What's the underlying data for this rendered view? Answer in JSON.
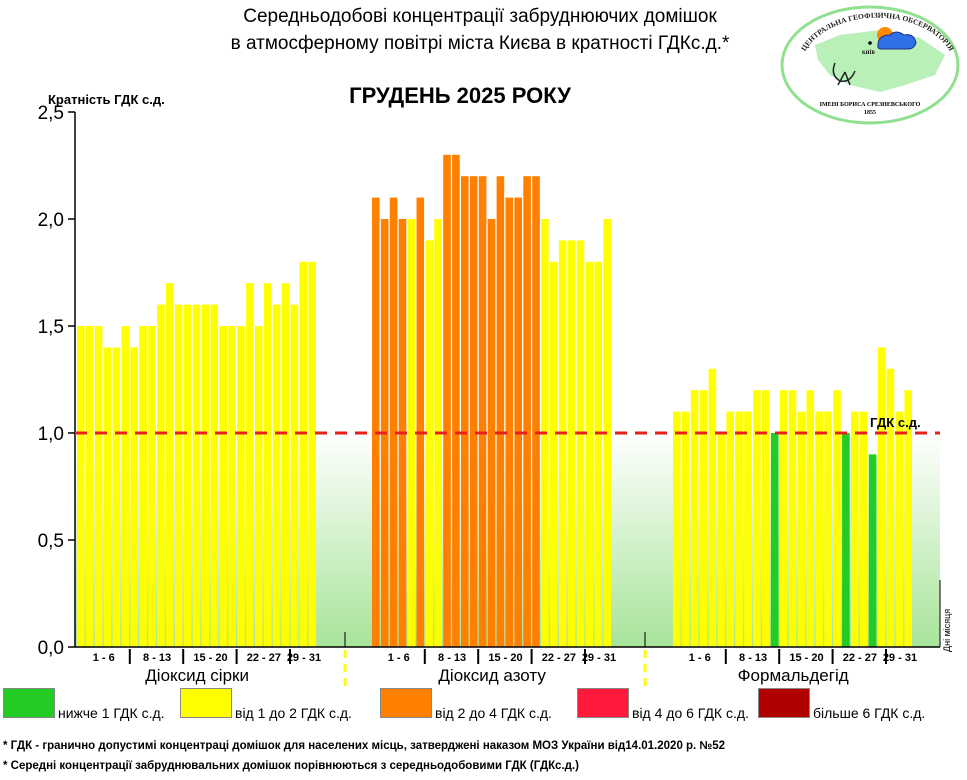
{
  "header": {
    "title_line1": "Середньодобові концентрації забруднюючих домішок",
    "title_line2": "в атмосферному повітрі міста Києва в кратності ГДКс.д.*"
  },
  "logo": {
    "top_text": "ЦЕНТРАЛЬНА ГЕОФІЗИЧНА ОБСЕРВАТОРІЯ",
    "bottom_text": "ІМЕНІ БОРИСА СРЕЗНЕВСЬКОГО",
    "year": "1855",
    "city": "КИЇВ"
  },
  "colors": {
    "g": "#22cc22",
    "y": "#ffff00",
    "o": "#ff8000",
    "r": "#ff1a3c",
    "d": "#b00000",
    "limit": "#e8201c"
  },
  "chart_data": {
    "type": "bar",
    "title": "ГРУДЕНЬ 2025 РОКУ",
    "ylabel": "Кратність ГДК с.д.",
    "xlabel": "Дні місяця",
    "ylim": [
      0,
      2.5
    ],
    "yticks": [
      "0,0",
      "0,5",
      "1,0",
      "1,5",
      "2,0",
      "2,5"
    ],
    "ytick_values": [
      0,
      0.5,
      1.0,
      1.5,
      2.0,
      2.5
    ],
    "reference_line": {
      "value": 1.0,
      "label": "ГДК с.д."
    },
    "week_labels": [
      "1 - 6",
      "8 - 13",
      "15 - 20",
      "22 - 27",
      "29 - 31"
    ],
    "week_sizes": [
      6,
      6,
      6,
      6,
      3
    ],
    "series": [
      {
        "name": "Діоксид сірки",
        "values": [
          1.5,
          1.5,
          1.5,
          1.4,
          1.4,
          1.5,
          1.4,
          1.5,
          1.5,
          1.6,
          1.7,
          1.6,
          1.6,
          1.6,
          1.6,
          1.6,
          1.5,
          1.5,
          1.5,
          1.7,
          1.5,
          1.7,
          1.6,
          1.7,
          1.6,
          1.8,
          1.8
        ],
        "levels": "yyyyyyyyyyyyyyyyyyyyyyyyyyy"
      },
      {
        "name": "Діоксид азоту",
        "values": [
          2.1,
          2.0,
          2.1,
          2.0,
          2.0,
          2.1,
          1.9,
          2.0,
          2.3,
          2.3,
          2.2,
          2.2,
          2.2,
          2.0,
          2.2,
          2.1,
          2.1,
          2.2,
          2.2,
          2.0,
          1.8,
          1.9,
          1.9,
          1.9,
          1.8,
          1.8,
          2.0
        ],
        "levels": "ooooyoyyoooooooooooyyyyyyyy"
      },
      {
        "name": "Формальдегід",
        "values": [
          1.1,
          1.1,
          1.2,
          1.2,
          1.3,
          1.0,
          1.1,
          1.1,
          1.1,
          1.2,
          1.2,
          1.0,
          1.2,
          1.2,
          1.1,
          1.2,
          1.1,
          1.1,
          1.2,
          1.0,
          1.1,
          1.1,
          0.9,
          1.4,
          1.3,
          1.1,
          1.2
        ],
        "levels": "yyyyyyyyyyygyyyyyyygyygyyyy"
      }
    ]
  },
  "legend": [
    {
      "key": "g",
      "label": "нижче 1 ГДК с.д."
    },
    {
      "key": "y",
      "label": "від 1 до 2 ГДК с.д."
    },
    {
      "key": "o",
      "label": "від 2 до 4 ГДК с.д."
    },
    {
      "key": "r",
      "label": "від 4 до 6 ГДК с.д."
    },
    {
      "key": "d",
      "label": "більше 6 ГДК с.д."
    }
  ],
  "footnotes": [
    "* ГДК - гранично допустимі концентраці домішок для населених місць, затверджені наказом МОЗ України від14.01.2020 р. №52",
    "* Середні концентрації забруднювальних домішок порівнюються з середньодобовими  ГДК (ГДКс.д.)"
  ]
}
